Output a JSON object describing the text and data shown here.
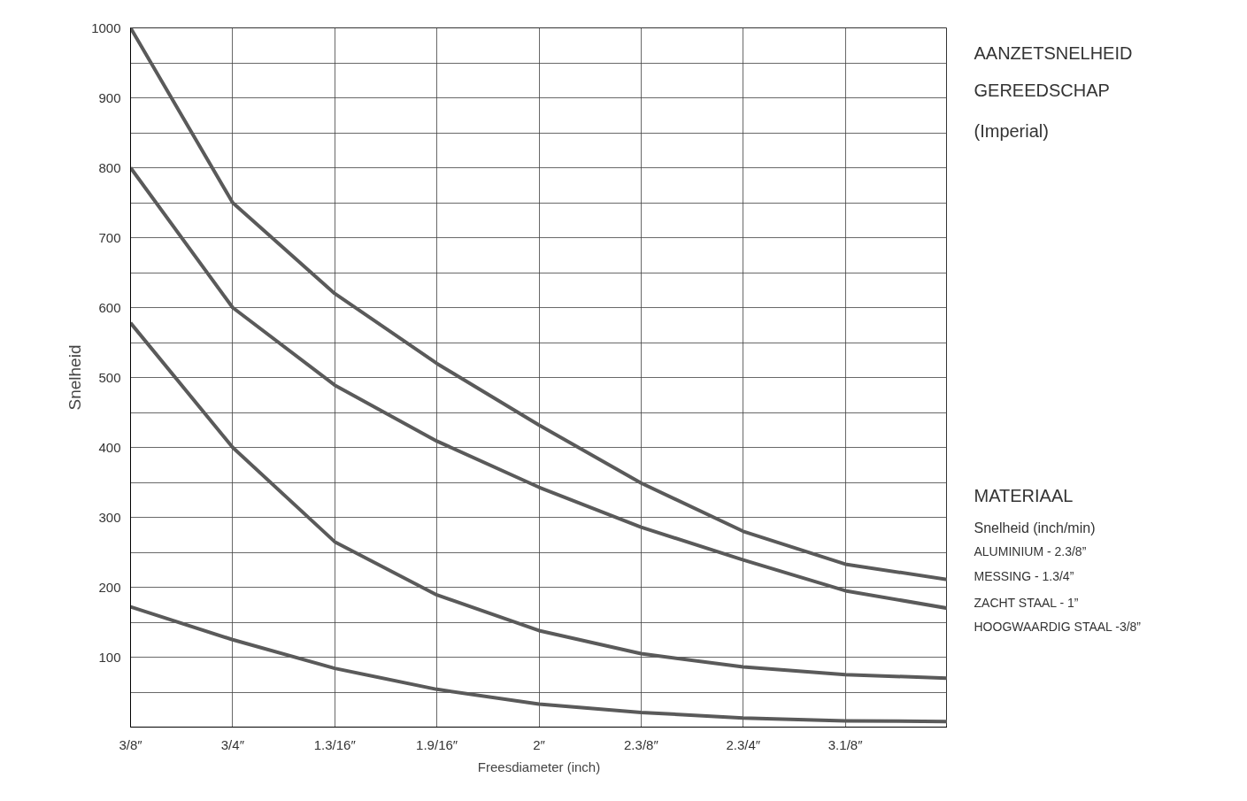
{
  "chart_data": {
    "type": "line",
    "xlabel": "Freesdiameter (inch)",
    "ylabel": "Snelheid",
    "categories": [
      "3/8″",
      "3/4″",
      "1.3/16″",
      "1.9/16″",
      "2″",
      "2.3/8″",
      "2.3/4″",
      "3.1/8″",
      null
    ],
    "series": [
      {
        "color": "#5a5a5a",
        "values": [
          1000,
          750,
          620,
          520,
          432,
          349,
          280,
          233,
          211
        ]
      },
      {
        "color": "#5a5a5a",
        "values": [
          800,
          600,
          489,
          409,
          343,
          286,
          239,
          195,
          170
        ]
      },
      {
        "color": "#5a5a5a",
        "values": [
          578,
          400,
          265,
          189,
          138,
          105,
          86,
          75,
          70
        ]
      },
      {
        "color": "#5a5a5a",
        "values": [
          172,
          125,
          84,
          54,
          33,
          21,
          13,
          9,
          8
        ]
      }
    ],
    "ylim": [
      0,
      1000
    ],
    "yticks": [
      {
        "value": 50,
        "label": null
      },
      100,
      {
        "value": 150,
        "label": null
      },
      200,
      {
        "value": 250,
        "label": null
      },
      300,
      {
        "value": 350,
        "label": null
      },
      400,
      {
        "value": 450,
        "label": null
      },
      500,
      {
        "value": 550,
        "label": null
      },
      600,
      {
        "value": 650,
        "label": null
      },
      700,
      {
        "value": 750,
        "label": null
      },
      800,
      {
        "value": 850,
        "label": null
      },
      900,
      {
        "value": 950,
        "label": null
      },
      1000
    ],
    "grid": true,
    "marker": "none",
    "line_style": "solid",
    "annotations": [
      "AANZETSNELHEID",
      "GEREEDSCHAP",
      "(Imperial)",
      "MATERIAAL",
      "Snelheid (inch/min)",
      "ALUMINIUM - 2.3/8”",
      "MESSING - 1.3/4”",
      "ZACHT STAAL - 1”",
      "HOOGWAARDIG STAAL -3/8”"
    ]
  }
}
